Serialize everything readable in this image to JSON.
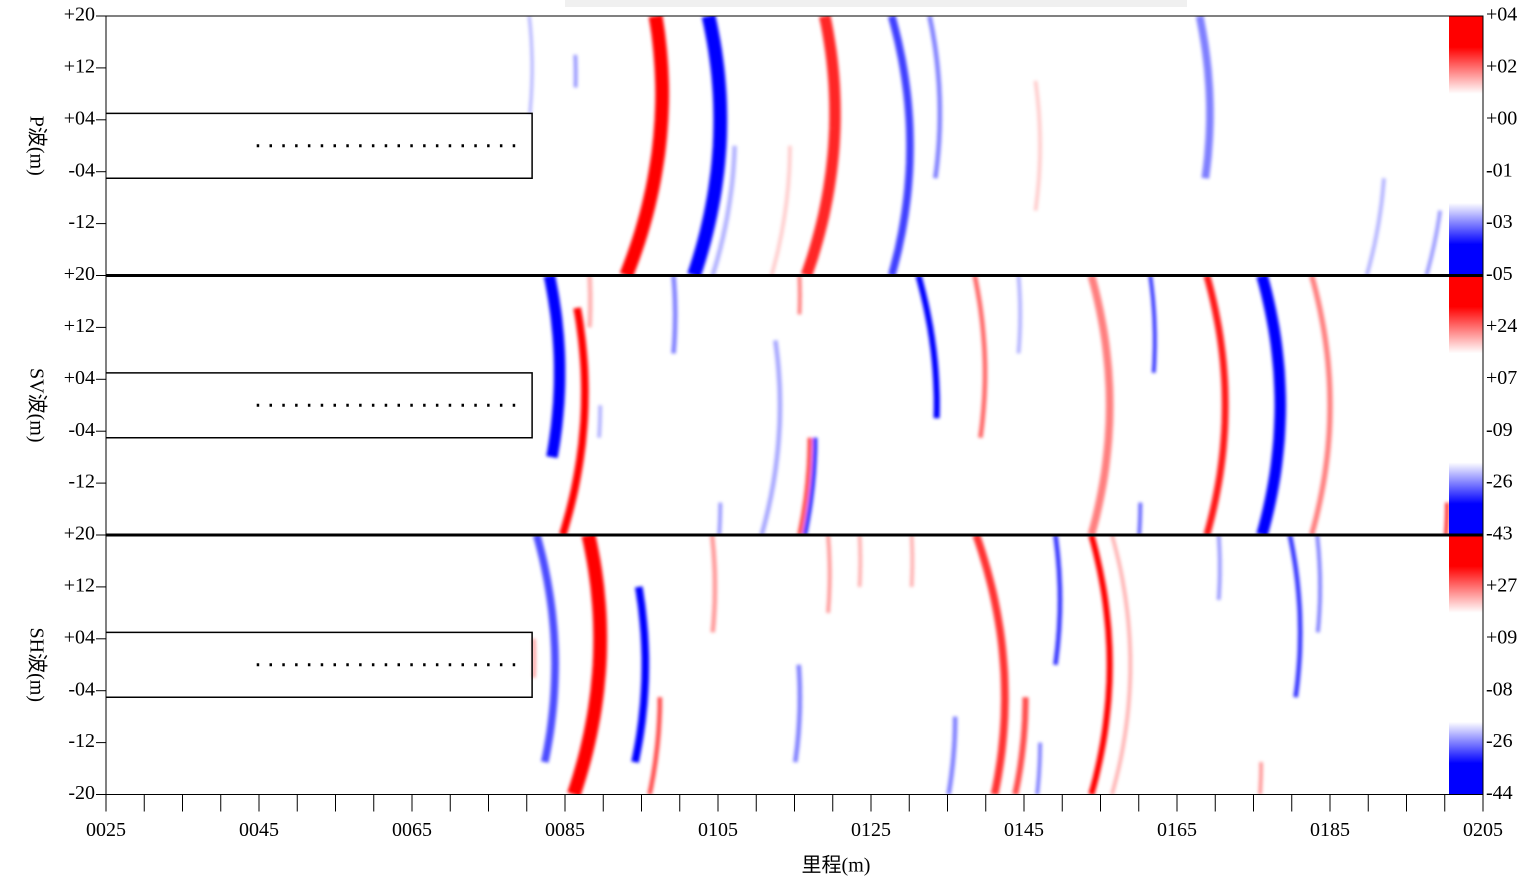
{
  "chart_data": {
    "type": "seismic_section",
    "x_label": "里程(m)",
    "xlim": [
      25,
      205
    ],
    "xticks": [
      {
        "value": 25,
        "label": "0025"
      },
      {
        "value": 45,
        "label": "0045"
      },
      {
        "value": 65,
        "label": "0065"
      },
      {
        "value": 85,
        "label": "0085"
      },
      {
        "value": 105,
        "label": "0105"
      },
      {
        "value": 125,
        "label": "0125"
      },
      {
        "value": 145,
        "label": "0145"
      },
      {
        "value": 165,
        "label": "0165"
      },
      {
        "value": 185,
        "label": "0185"
      },
      {
        "value": 205,
        "label": "0205"
      }
    ],
    "xticks_minor": [
      30,
      35,
      40,
      50,
      55,
      60,
      70,
      75,
      80,
      90,
      95,
      100,
      110,
      115,
      120,
      130,
      135,
      140,
      150,
      155,
      160,
      170,
      175,
      180,
      190,
      195,
      200
    ],
    "colors": {
      "positive": "#ff0000",
      "negative": "#0000ff"
    },
    "panels": [
      {
        "y_label": "P波(m)",
        "ylim": [
          -20,
          20
        ],
        "yticks": [
          {
            "value": 20,
            "label": "+20"
          },
          {
            "value": 12,
            "label": "+12"
          },
          {
            "value": 4,
            "label": "+04"
          },
          {
            "value": -4,
            "label": "-04"
          },
          {
            "value": -12,
            "label": "-12"
          }
        ],
        "colorbar_labels": [
          "+04",
          "+02",
          "+00",
          "-01",
          "-03",
          "-05"
        ],
        "tunnel": {
          "xlim": [
            25,
            80.7
          ],
          "ylim": [
            -5,
            5
          ]
        },
        "receivers": {
          "xlim": [
            44.7,
            79.7
          ],
          "y": 0
        },
        "events": [
          {
            "x": 80.7,
            "y": 12,
            "y_range": [
              20,
              5
            ],
            "polarity": "-",
            "strength": 0.3,
            "width": 0.4
          },
          {
            "x": 86.4,
            "y": 11,
            "y_range": [
              14,
              9
            ],
            "polarity": "-",
            "strength": 0.4,
            "width": 0.5
          },
          {
            "x": 97.7,
            "y": 8,
            "y_range": [
              20,
              -20
            ],
            "polarity": "+",
            "strength": 1,
            "width": 1.8
          },
          {
            "x": 105.3,
            "y": 4,
            "y_range": [
              20,
              -20
            ],
            "polarity": "-",
            "strength": 1,
            "width": 1.8
          },
          {
            "x": 107.2,
            "y": 2,
            "y_range": [
              0,
              -20
            ],
            "polarity": "-",
            "strength": 0.3,
            "width": 0.6
          },
          {
            "x": 114.4,
            "y": 0,
            "y_range": [
              0,
              -20
            ],
            "polarity": "+",
            "strength": 0.2,
            "width": 0.5
          },
          {
            "x": 120.3,
            "y": 5,
            "y_range": [
              20,
              -20
            ],
            "polarity": "+",
            "strength": 0.85,
            "width": 1.5
          },
          {
            "x": 130.1,
            "y": 0,
            "y_range": [
              20,
              -20
            ],
            "polarity": "-",
            "strength": 0.75,
            "width": 1.0
          },
          {
            "x": 134,
            "y": 5,
            "y_range": [
              20,
              -5
            ],
            "polarity": "-",
            "strength": 0.5,
            "width": 0.6
          },
          {
            "x": 147.1,
            "y": 0,
            "y_range": [
              10,
              -10
            ],
            "polarity": "+",
            "strength": 0.2,
            "width": 0.5
          },
          {
            "x": 169.3,
            "y": 5,
            "y_range": [
              20,
              -5
            ],
            "polarity": "-",
            "strength": 0.5,
            "width": 1.0
          },
          {
            "x": 192.2,
            "y": 0,
            "y_range": [
              -5,
              -20
            ],
            "polarity": "-",
            "strength": 0.3,
            "width": 0.5
          },
          {
            "x": 200,
            "y": 0,
            "y_range": [
              -10,
              -20
            ],
            "polarity": "-",
            "strength": 0.4,
            "width": 0.5
          }
        ]
      },
      {
        "y_label": "SV波(m)",
        "ylim": [
          -20,
          20
        ],
        "yticks": [
          {
            "value": 20,
            "label": "+20"
          },
          {
            "value": 12,
            "label": "+12"
          },
          {
            "value": 4,
            "label": "+04"
          },
          {
            "value": -4,
            "label": "-04"
          },
          {
            "value": -12,
            "label": "-12"
          }
        ],
        "colorbar_labels": [
          "+24",
          "+07",
          "-09",
          "-26",
          "-43"
        ],
        "tunnel": {
          "xlim": [
            25,
            80.7
          ],
          "ylim": [
            -5,
            5
          ]
        },
        "receivers": {
          "xlim": [
            44.7,
            79.7
          ],
          "y": 0
        },
        "events": [
          {
            "x": 84.3,
            "y": 5,
            "y_range": [
              20,
              -8
            ],
            "polarity": "-",
            "strength": 1,
            "width": 1.5
          },
          {
            "x": 87.6,
            "y": 2,
            "y_range": [
              15,
              -20
            ],
            "polarity": "+",
            "strength": 1,
            "width": 1.0
          },
          {
            "x": 89.6,
            "y": 0,
            "y_range": [
              0,
              -5
            ],
            "polarity": "-",
            "strength": 0.3,
            "width": 0.5
          },
          {
            "x": 88.3,
            "y": 16,
            "y_range": [
              20,
              12
            ],
            "polarity": "+",
            "strength": 0.3,
            "width": 0.6
          },
          {
            "x": 99.4,
            "y": 14,
            "y_range": [
              20,
              8
            ],
            "polarity": "-",
            "strength": 0.5,
            "width": 0.6
          },
          {
            "x": 113.1,
            "y": 0,
            "y_range": [
              10,
              -20
            ],
            "polarity": "-",
            "strength": 0.35,
            "width": 0.6
          },
          {
            "x": 115.7,
            "y": 17,
            "y_range": [
              20,
              14
            ],
            "polarity": "+",
            "strength": 0.5,
            "width": 0.5
          },
          {
            "x": 117,
            "y": -5,
            "y_range": [
              -5,
              -20
            ],
            "polarity": "+",
            "strength": 0.7,
            "width": 0.6
          },
          {
            "x": 117.7,
            "y": -5,
            "y_range": [
              -5,
              -20
            ],
            "polarity": "-",
            "strength": 0.8,
            "width": 0.6
          },
          {
            "x": 105.3,
            "y": -15,
            "y_range": [
              -15,
              -20
            ],
            "polarity": "-",
            "strength": 0.4,
            "width": 0.5
          },
          {
            "x": 133.6,
            "y": 0,
            "y_range": [
              20,
              -2
            ],
            "polarity": "-",
            "strength": 1,
            "width": 0.8
          },
          {
            "x": 139.9,
            "y": 5,
            "y_range": [
              20,
              -5
            ],
            "polarity": "+",
            "strength": 0.6,
            "width": 0.6
          },
          {
            "x": 144.5,
            "y": 14,
            "y_range": [
              20,
              8
            ],
            "polarity": "-",
            "strength": 0.3,
            "width": 0.5
          },
          {
            "x": 156.2,
            "y": 0,
            "y_range": [
              20,
              -20
            ],
            "polarity": "+",
            "strength": 0.5,
            "width": 1.0
          },
          {
            "x": 162.1,
            "y": 10,
            "y_range": [
              20,
              5
            ],
            "polarity": "-",
            "strength": 0.8,
            "width": 0.5
          },
          {
            "x": 171.3,
            "y": 0,
            "y_range": [
              20,
              -20
            ],
            "polarity": "+",
            "strength": 0.9,
            "width": 0.9
          },
          {
            "x": 178.5,
            "y": 0,
            "y_range": [
              20,
              -20
            ],
            "polarity": "-",
            "strength": 1,
            "width": 1.5
          },
          {
            "x": 185,
            "y": 0,
            "y_range": [
              20,
              -20
            ],
            "polarity": "+",
            "strength": 0.5,
            "width": 0.7
          },
          {
            "x": 160.2,
            "y": -15,
            "y_range": [
              -15,
              -20
            ],
            "polarity": "-",
            "strength": 0.6,
            "width": 0.5
          },
          {
            "x": 200.3,
            "y": -15,
            "y_range": [
              -15,
              -20
            ],
            "polarity": "+",
            "strength": 0.8,
            "width": 0.5
          }
        ]
      },
      {
        "y_label": "SH波(m)",
        "ylim": [
          -20,
          20
        ],
        "yticks": [
          {
            "value": 20,
            "label": "+20"
          },
          {
            "value": 12,
            "label": "+12"
          },
          {
            "value": 4,
            "label": "+04"
          },
          {
            "value": -4,
            "label": "-04"
          },
          {
            "value": -12,
            "label": "-12"
          },
          {
            "value": -20,
            "label": "-20"
          }
        ],
        "colorbar_labels": [
          "+27",
          "+09",
          "-08",
          "-26",
          "-44"
        ],
        "tunnel": {
          "xlim": [
            25,
            80.7
          ],
          "ylim": [
            -5,
            5
          ]
        },
        "receivers": {
          "xlim": [
            44.7,
            79.7
          ],
          "y": 0
        },
        "events": [
          {
            "x": 83.7,
            "y": 0,
            "y_range": [
              20,
              -15
            ],
            "polarity": "-",
            "strength": 0.7,
            "width": 1.0
          },
          {
            "x": 89.6,
            "y": 4,
            "y_range": [
              20,
              -20
            ],
            "polarity": "+",
            "strength": 1,
            "width": 1.8
          },
          {
            "x": 95.5,
            "y": 0,
            "y_range": [
              12,
              -15
            ],
            "polarity": "-",
            "strength": 1,
            "width": 1.0
          },
          {
            "x": 97.4,
            "y": -5,
            "y_range": [
              -5,
              -20
            ],
            "polarity": "+",
            "strength": 0.7,
            "width": 0.6
          },
          {
            "x": 81,
            "y": 1,
            "y_range": [
              4,
              -2
            ],
            "polarity": "+",
            "strength": 0.4,
            "width": 0.4
          },
          {
            "x": 104.6,
            "y": 12,
            "y_range": [
              20,
              5
            ],
            "polarity": "+",
            "strength": 0.4,
            "width": 0.6
          },
          {
            "x": 115.7,
            "y": -5,
            "y_range": [
              0,
              -15
            ],
            "polarity": "-",
            "strength": 0.5,
            "width": 0.6
          },
          {
            "x": 119.6,
            "y": 14,
            "y_range": [
              20,
              8
            ],
            "polarity": "+",
            "strength": 0.4,
            "width": 0.5
          },
          {
            "x": 123.6,
            "y": 16,
            "y_range": [
              20,
              12
            ],
            "polarity": "+",
            "strength": 0.3,
            "width": 0.5
          },
          {
            "x": 130.4,
            "y": 16,
            "y_range": [
              20,
              12
            ],
            "polarity": "+",
            "strength": 0.3,
            "width": 0.5
          },
          {
            "x": 136,
            "y": -8,
            "y_range": [
              -8,
              -20
            ],
            "polarity": "-",
            "strength": 0.5,
            "width": 0.6
          },
          {
            "x": 142.5,
            "y": -5,
            "y_range": [
              20,
              -20
            ],
            "polarity": "+",
            "strength": 0.8,
            "width": 1.0
          },
          {
            "x": 145.2,
            "y": -5,
            "y_range": [
              -5,
              -20
            ],
            "polarity": "+",
            "strength": 0.7,
            "width": 0.8
          },
          {
            "x": 149.7,
            "y": 10,
            "y_range": [
              20,
              0
            ],
            "polarity": "-",
            "strength": 0.8,
            "width": 0.6
          },
          {
            "x": 147.1,
            "y": -12,
            "y_range": [
              -12,
              -20
            ],
            "polarity": "-",
            "strength": 0.5,
            "width": 0.5
          },
          {
            "x": 156.2,
            "y": 0,
            "y_range": [
              20,
              -20
            ],
            "polarity": "+",
            "strength": 1,
            "width": 0.8
          },
          {
            "x": 158.9,
            "y": 0,
            "y_range": [
              20,
              -20
            ],
            "polarity": "+",
            "strength": 0.3,
            "width": 0.5
          },
          {
            "x": 170.6,
            "y": 15,
            "y_range": [
              20,
              10
            ],
            "polarity": "-",
            "strength": 0.4,
            "width": 0.5
          },
          {
            "x": 181.1,
            "y": 5,
            "y_range": [
              20,
              -5
            ],
            "polarity": "-",
            "strength": 0.8,
            "width": 0.6
          },
          {
            "x": 183.7,
            "y": 12,
            "y_range": [
              20,
              5
            ],
            "polarity": "-",
            "strength": 0.5,
            "width": 0.5
          },
          {
            "x": 176,
            "y": -15,
            "y_range": [
              -15,
              -20
            ],
            "polarity": "+",
            "strength": 0.4,
            "width": 0.5
          }
        ]
      }
    ]
  }
}
